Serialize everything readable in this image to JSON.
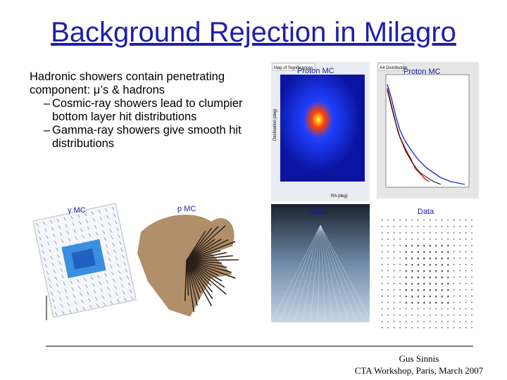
{
  "header": {
    "title": "Background Rejection in Milagro"
  },
  "body": {
    "bullet": "Hadronic showers contain penetrating component: μ’s & hadrons",
    "sub_bullet_marker": "–",
    "sub_bullets": [
      "Cosmic-ray showers lead to clumpier bottom layer hit distributions",
      "Gamma-ray showers give smooth hit distributions"
    ]
  },
  "figures": [
    {
      "label": "Proton MC",
      "caption": "Map of Significances",
      "x_label": "RA (deg)",
      "y_label": "Declination (deg)"
    },
    {
      "label": "Proton MC",
      "caption": "A4 Distribution"
    },
    {
      "label": "γ MC"
    },
    {
      "label": "p MC"
    },
    {
      "label": "Data"
    },
    {
      "label": "Data"
    }
  ],
  "footer": {
    "author": "Gus Sinnis",
    "event": "CTA Workshop, Paris, March 2007"
  }
}
